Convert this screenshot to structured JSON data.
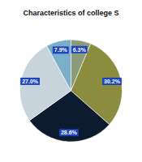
{
  "chart_data": {
    "type": "pie",
    "title": "Characteristics of college S",
    "values": [
      6.3,
      30.2,
      28.6,
      27.0,
      7.9
    ],
    "value_labels": [
      "6.3%",
      "30.2%",
      "28.6%",
      "27.0%",
      "7.9%"
    ],
    "colors": [
      "#8a9a7a",
      "#8b8c3e",
      "#0d1b2e",
      "#c8d4dc",
      "#7baec8"
    ],
    "data_labels": true
  }
}
